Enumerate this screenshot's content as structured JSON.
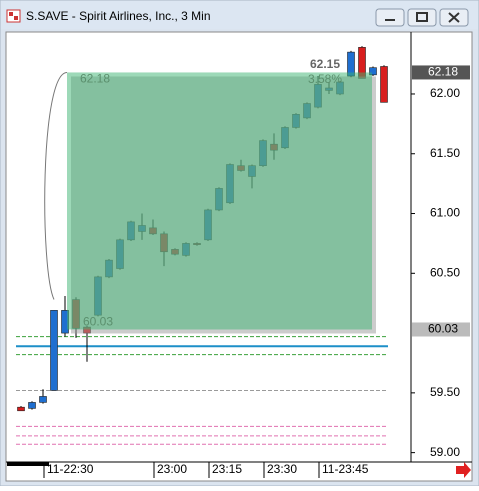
{
  "window": {
    "title": "S.SAVE - Spirit Airlines, Inc., 3 Min"
  },
  "chart_data": {
    "type": "candlestick",
    "categories": [
      null,
      null,
      null,
      "11-22:30",
      null,
      null,
      null,
      null,
      null,
      null,
      null,
      null,
      null,
      "23:00",
      null,
      null,
      null,
      null,
      "23:15",
      null,
      null,
      null,
      null,
      "23:30",
      null,
      null,
      null,
      null,
      "11-23:45",
      null,
      null,
      null,
      null,
      null
    ],
    "open": [
      59.38,
      59.37,
      59.42,
      59.52,
      60.0,
      60.28,
      60.05,
      60.15,
      60.47,
      60.54,
      60.78,
      60.85,
      60.88,
      60.83,
      60.7,
      60.65,
      60.75,
      60.78,
      61.03,
      61.09,
      61.4,
      61.31,
      61.4,
      61.58,
      61.55,
      61.72,
      61.8,
      61.89,
      62.03,
      62.0,
      62.15,
      62.39,
      62.16,
      62.23
    ],
    "high": [
      59.39,
      59.43,
      59.53,
      60.19,
      60.31,
      60.3,
      60.06,
      60.48,
      60.62,
      60.79,
      60.94,
      61.0,
      60.95,
      60.85,
      60.71,
      60.76,
      60.76,
      61.04,
      61.22,
      61.42,
      61.45,
      61.41,
      61.62,
      61.67,
      61.73,
      61.84,
      61.93,
      62.15,
      62.1,
      62.11,
      62.36,
      62.4,
      62.23,
      62.24
    ],
    "low": [
      59.35,
      59.36,
      59.41,
      59.52,
      59.97,
      59.96,
      59.76,
      60.14,
      60.46,
      60.53,
      60.77,
      60.78,
      60.82,
      60.56,
      60.65,
      60.64,
      60.73,
      60.77,
      61.02,
      61.08,
      61.35,
      61.21,
      61.39,
      61.45,
      61.54,
      61.71,
      61.79,
      61.88,
      62.0,
      61.99,
      62.14,
      62.13,
      62.15,
      61.93
    ],
    "close": [
      59.35,
      59.42,
      59.47,
      60.19,
      60.19,
      60.04,
      60.0,
      60.47,
      60.61,
      60.78,
      60.93,
      60.9,
      60.83,
      60.68,
      60.66,
      60.75,
      60.74,
      61.03,
      61.21,
      61.41,
      61.36,
      61.4,
      61.61,
      61.53,
      61.72,
      61.83,
      61.92,
      62.08,
      62.05,
      62.1,
      62.35,
      62.13,
      62.22,
      61.93
    ],
    "up_color": "#1f6fd0",
    "down_color": "#d81e1e",
    "ylim": [
      58.93,
      62.51
    ],
    "yticks": [
      {
        "value": 59,
        "label": "59.00"
      },
      {
        "value": 59.5,
        "label": "59.50"
      },
      {
        "value": 60.5,
        "label": "60.50"
      },
      {
        "value": 61,
        "label": "61.00"
      },
      {
        "value": 61.5,
        "label": "61.50"
      },
      {
        "value": 62,
        "label": "62.00"
      }
    ],
    "highlight": {
      "high": 62.18,
      "low": 60.03,
      "last": 62.15,
      "change": "3.58%",
      "color": "#3cb371"
    },
    "price_markers": [
      62.18,
      60.03
    ],
    "levels": [
      {
        "value": 59.97,
        "color": "#3aa03a",
        "dash": true
      },
      {
        "value": 59.89,
        "color": "#1d8fc8",
        "dash": false
      },
      {
        "value": 59.82,
        "color": "#3aa03a",
        "dash": true
      },
      {
        "value": 59.52,
        "color": "#9a9a9a",
        "dash": true
      },
      {
        "value": 59.22,
        "color": "#e070b0",
        "dash": true
      },
      {
        "value": 59.14,
        "color": "#e070b0",
        "dash": true
      },
      {
        "value": 59.07,
        "color": "#e070b0",
        "dash": true
      }
    ]
  }
}
